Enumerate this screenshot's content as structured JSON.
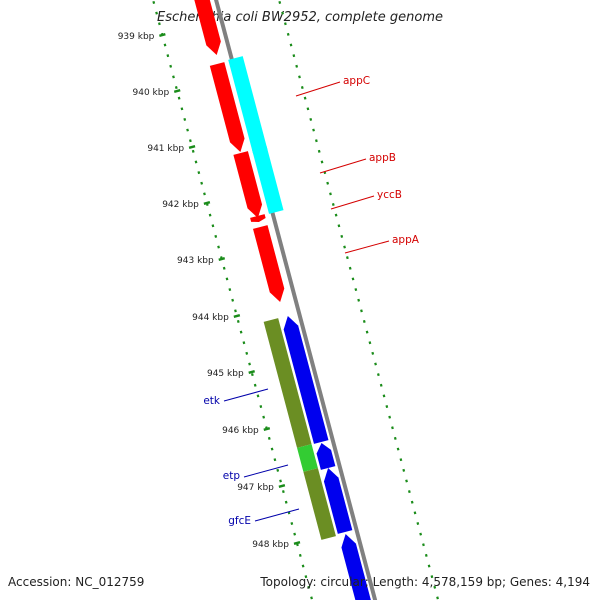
{
  "title": "Escherichia coli BW2952, complete genome",
  "footer": {
    "accession": "Accession: NC_012759",
    "summary": "Topology: circular; Length: 4,578,159 bp; Genes: 4,194"
  },
  "colors": {
    "backbone": "#808080",
    "tick_dots": "#1a8c1a",
    "forward_gene": "#ff0000",
    "reverse_gene": "#0000ee",
    "cds_forward": "#00ffff",
    "cds_reverse": "#6b8e23",
    "highlight": "#33cc33",
    "label_forward": "#d40000",
    "label_reverse": "#0000aa"
  },
  "ticks": [
    {
      "label": "939 kbp"
    },
    {
      "label": "940 kbp"
    },
    {
      "label": "941 kbp"
    },
    {
      "label": "942 kbp"
    },
    {
      "label": "943 kbp"
    },
    {
      "label": "944 kbp"
    },
    {
      "label": "945 kbp"
    },
    {
      "label": "946 kbp"
    },
    {
      "label": "947 kbp"
    },
    {
      "label": "948 kbp"
    }
  ],
  "genes": [
    {
      "name": "appC",
      "strand": "forward"
    },
    {
      "name": "appB",
      "strand": "forward"
    },
    {
      "name": "yccB",
      "strand": "forward"
    },
    {
      "name": "appA",
      "strand": "forward"
    },
    {
      "name": "etk",
      "strand": "reverse"
    },
    {
      "name": "etp",
      "strand": "reverse"
    },
    {
      "name": "gfcE",
      "strand": "reverse"
    }
  ]
}
